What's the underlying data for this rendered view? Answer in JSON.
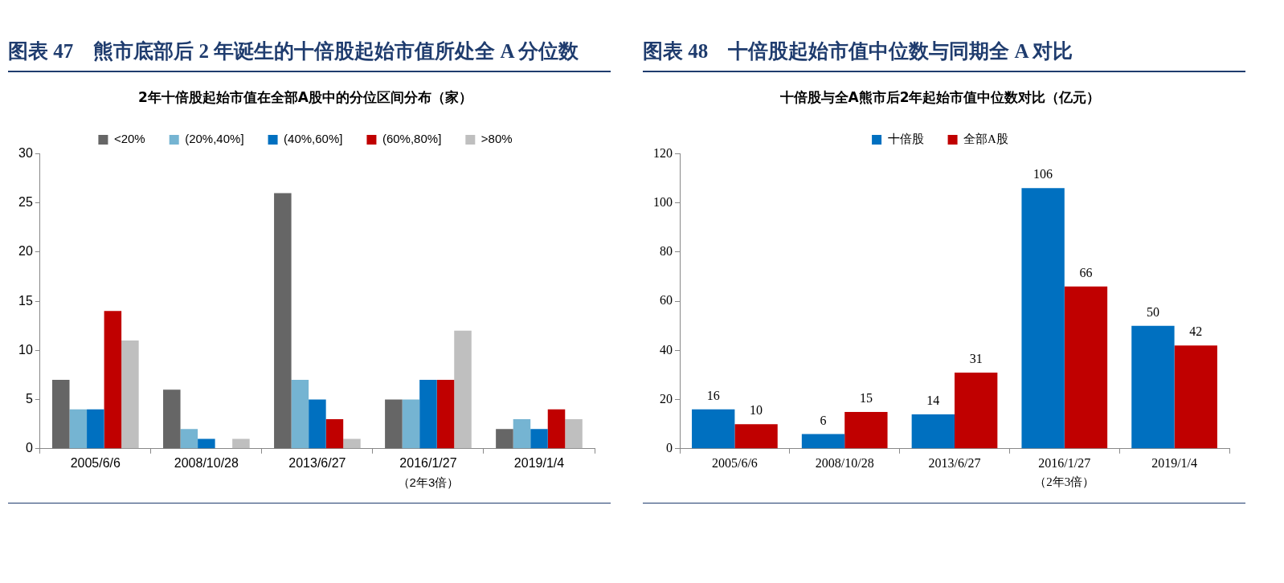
{
  "chart_data": [
    {
      "type": "bar",
      "title": "图表 47　熊市底部后 2 年诞生的十倍股起始市值所处全 A 分位数",
      "subtitle": "2年十倍股起始市值在全部A股中的分位区间分布（家）",
      "categories": [
        "2005/6/6",
        "2008/10/28",
        "2013/6/27",
        "2016/1/27",
        "2019/1/4"
      ],
      "series": [
        {
          "name": "<20%",
          "color": "#666666",
          "values": [
            7,
            6,
            26,
            5,
            2
          ]
        },
        {
          "name": "(20%,40%]",
          "color": "#75b4d2",
          "values": [
            4,
            2,
            7,
            5,
            3
          ]
        },
        {
          "name": "(40%,60%]",
          "color": "#0070c0",
          "values": [
            4,
            1,
            5,
            7,
            2
          ]
        },
        {
          "name": "(60%,80%]",
          "color": "#c00000",
          "values": [
            14,
            0,
            3,
            7,
            4
          ]
        },
        {
          "name": ">80%",
          "color": "#bfbfbf",
          "values": [
            11,
            1,
            1,
            12,
            3
          ]
        }
      ],
      "ylim": [
        0,
        30
      ],
      "yticks": [
        0,
        5,
        10,
        15,
        20,
        25,
        30
      ],
      "grid": false,
      "legend": "top",
      "annotations": [
        "（2年3倍）"
      ]
    },
    {
      "type": "bar",
      "title": "图表 48　十倍股起始市值中位数与同期全 A 对比",
      "subtitle": "十倍股与全A熊市后2年起始市值中位数对比（亿元）",
      "categories": [
        "2005/6/6",
        "2008/10/28",
        "2013/6/27",
        "2016/1/27",
        "2019/1/4"
      ],
      "series": [
        {
          "name": "十倍股",
          "color": "#0070c0",
          "values": [
            16,
            6,
            14,
            106,
            50
          ]
        },
        {
          "name": "全部A股",
          "color": "#c00000",
          "values": [
            10,
            15,
            31,
            66,
            42
          ]
        }
      ],
      "ylim": [
        0,
        120
      ],
      "yticks": [
        0,
        20,
        40,
        60,
        80,
        100,
        120
      ],
      "grid": false,
      "legend": "top",
      "data_labels": true,
      "annotations": [
        "（2年3倍）"
      ]
    }
  ]
}
